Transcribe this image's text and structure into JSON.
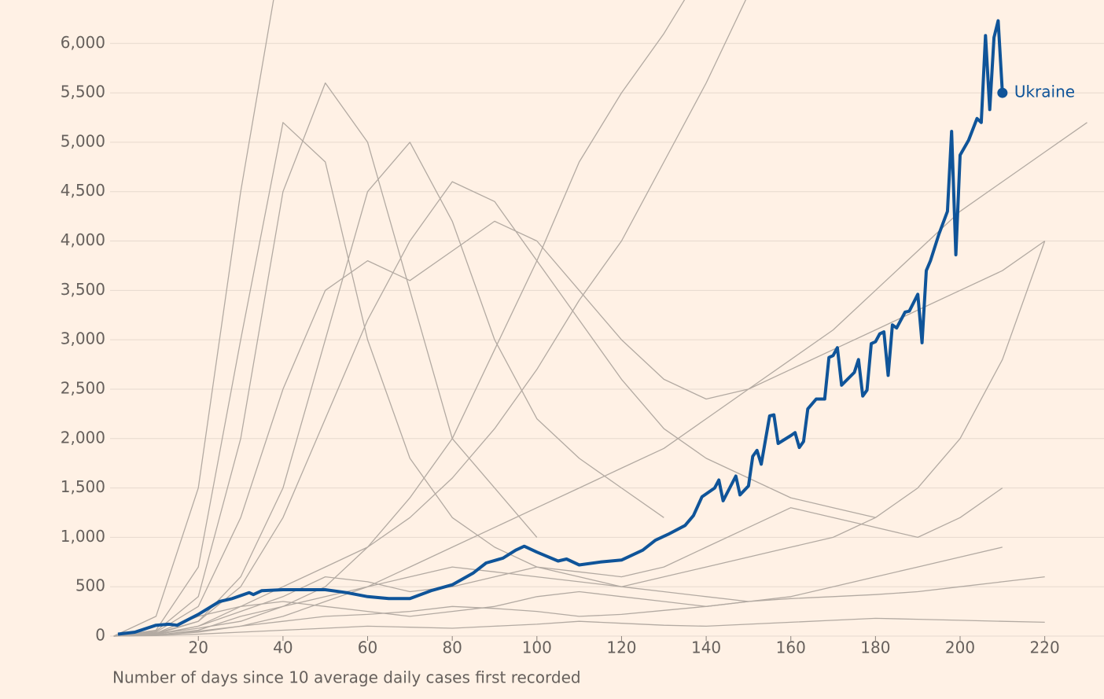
{
  "chart_data": {
    "type": "line",
    "x_label": "Number of days since 10 average daily cases first recorded",
    "xlim": [
      0,
      234
    ],
    "ylim": [
      0,
      6400
    ],
    "xticks": [
      20,
      40,
      60,
      80,
      100,
      120,
      140,
      160,
      180,
      200,
      220
    ],
    "yticks": [
      0,
      500,
      {
        "value": 1000,
        "label": "1,000"
      },
      {
        "value": 1500,
        "label": "1,500"
      },
      {
        "value": 2000,
        "label": "2,000"
      },
      {
        "value": 2500,
        "label": "2,500"
      },
      {
        "value": 3000,
        "label": "3,000"
      },
      {
        "value": 3500,
        "label": "3,500"
      },
      {
        "value": 4000,
        "label": "4,000"
      },
      {
        "value": 4500,
        "label": "4,500"
      },
      {
        "value": 5000,
        "label": "5,000"
      },
      {
        "value": 5500,
        "label": "5,500"
      },
      {
        "value": 6000,
        "label": "6,000"
      }
    ],
    "grid": true,
    "series": [
      {
        "color": "#b3aaa2",
        "x": [
          0,
          10,
          20,
          30,
          40
        ],
        "values": [
          0,
          200,
          1500,
          4500,
          7000
        ]
      },
      {
        "color": "#b3aaa2",
        "x": [
          0,
          10,
          20,
          30,
          40,
          50,
          60,
          70,
          80,
          90,
          100
        ],
        "values": [
          0,
          50,
          400,
          2000,
          4500,
          5600,
          5000,
          3500,
          2000,
          1500,
          1000
        ]
      },
      {
        "color": "#b3aaa2",
        "x": [
          0,
          10,
          20,
          30,
          40,
          50,
          60,
          70,
          80,
          90,
          100,
          110,
          120,
          130
        ],
        "values": [
          0,
          30,
          150,
          600,
          1500,
          3000,
          4500,
          5000,
          4200,
          3000,
          2200,
          1800,
          1500,
          1200
        ]
      },
      {
        "color": "#b3aaa2",
        "x": [
          0,
          10,
          20,
          30,
          40,
          50,
          60,
          70,
          80,
          90,
          100,
          110,
          120,
          130,
          140,
          150
        ],
        "values": [
          0,
          20,
          100,
          300,
          500,
          700,
          900,
          1200,
          1600,
          2100,
          2700,
          3400,
          4000,
          4800,
          5600,
          6500
        ]
      },
      {
        "color": "#b3aaa2",
        "x": [
          0,
          10,
          20,
          30,
          40,
          50,
          60,
          70,
          80,
          90,
          100,
          110,
          120,
          130,
          140,
          150,
          160,
          170,
          180,
          190,
          200,
          210,
          220
        ],
        "values": [
          0,
          10,
          60,
          200,
          300,
          400,
          500,
          600,
          700,
          650,
          600,
          550,
          500,
          600,
          700,
          800,
          900,
          1000,
          1200,
          1500,
          2000,
          2800,
          4000
        ]
      },
      {
        "color": "#b3aaa2",
        "x": [
          0,
          10,
          20,
          30,
          40,
          50,
          60,
          70,
          80,
          90,
          100,
          110,
          120,
          130,
          140,
          150,
          160,
          170,
          180,
          190,
          200,
          210
        ],
        "values": [
          0,
          30,
          200,
          300,
          350,
          300,
          250,
          200,
          250,
          300,
          400,
          450,
          400,
          350,
          300,
          350,
          400,
          500,
          600,
          700,
          800,
          900
        ]
      },
      {
        "color": "#b3aaa2",
        "x": [
          0,
          10,
          20,
          30,
          40,
          50,
          60,
          70,
          80,
          90,
          100,
          110,
          120,
          130,
          140,
          150,
          160,
          170,
          180,
          190,
          200,
          210,
          220
        ],
        "values": [
          0,
          10,
          50,
          100,
          150,
          200,
          220,
          250,
          300,
          280,
          250,
          200,
          220,
          260,
          300,
          350,
          380,
          400,
          420,
          450,
          500,
          550,
          600
        ]
      },
      {
        "color": "#b3aaa2",
        "x": [
          0,
          10,
          20,
          30,
          40,
          50,
          60,
          70,
          80,
          90,
          100,
          110,
          120,
          130,
          140,
          150,
          160,
          170,
          180,
          190,
          200,
          210,
          220
        ],
        "values": [
          0,
          40,
          300,
          1200,
          2500,
          3500,
          3800,
          3600,
          3900,
          4200,
          4000,
          3500,
          3000,
          2600,
          2400,
          2500,
          2700,
          2900,
          3100,
          3300,
          3500,
          3700,
          4000
        ]
      },
      {
        "color": "#b3aaa2",
        "x": [
          0,
          10,
          20,
          30,
          40,
          50,
          60,
          70,
          80,
          90,
          100,
          110,
          120,
          130,
          140
        ],
        "values": [
          0,
          20,
          80,
          150,
          300,
          500,
          900,
          1400,
          2000,
          2900,
          3800,
          4800,
          5500,
          6100,
          6800
        ]
      },
      {
        "color": "#b3aaa2",
        "x": [
          0,
          10,
          20,
          30,
          40,
          50,
          60,
          70,
          80,
          90,
          100,
          110,
          120,
          130,
          140,
          150,
          160,
          170,
          180,
          190,
          200,
          210,
          220
        ],
        "values": [
          0,
          5,
          20,
          40,
          60,
          80,
          100,
          90,
          80,
          100,
          120,
          150,
          130,
          110,
          100,
          120,
          140,
          160,
          180,
          170,
          160,
          150,
          140
        ]
      },
      {
        "color": "#b3aaa2",
        "x": [
          0,
          10,
          20,
          30,
          40,
          50,
          60,
          70,
          80,
          90,
          100,
          110,
          120,
          130,
          140,
          150,
          160,
          170,
          180,
          190,
          200,
          210
        ],
        "values": [
          0,
          15,
          100,
          250,
          400,
          600,
          550,
          450,
          500,
          600,
          700,
          650,
          600,
          700,
          900,
          1100,
          1300,
          1200,
          1100,
          1000,
          1200,
          1500
        ]
      },
      {
        "color": "#b3aaa2",
        "x": [
          0,
          10,
          20,
          30,
          40,
          50,
          60,
          70,
          80,
          90,
          100,
          110,
          120,
          130,
          140,
          150
        ],
        "values": [
          0,
          60,
          700,
          3000,
          5200,
          4800,
          3000,
          1800,
          1200,
          900,
          700,
          600,
          500,
          450,
          400,
          350
        ]
      },
      {
        "color": "#b3aaa2",
        "x": [
          0,
          10,
          20,
          30,
          40,
          50,
          60,
          70,
          80,
          90,
          100,
          110,
          120,
          130,
          140,
          150,
          160,
          170,
          180
        ],
        "values": [
          0,
          20,
          150,
          500,
          1200,
          2200,
          3200,
          4000,
          4600,
          4400,
          3800,
          3200,
          2600,
          2100,
          1800,
          1600,
          1400,
          1300,
          1200
        ]
      },
      {
        "color": "#b3aaa2",
        "x": [
          0,
          10,
          20,
          30,
          40,
          50,
          60,
          70,
          80,
          90,
          100,
          110,
          120,
          130,
          140,
          150,
          160,
          170,
          180,
          190,
          200,
          210,
          220,
          230
        ],
        "values": [
          0,
          10,
          40,
          100,
          200,
          350,
          500,
          700,
          900,
          1100,
          1300,
          1500,
          1700,
          1900,
          2200,
          2500,
          2800,
          3100,
          3500,
          3900,
          4300,
          4600,
          4900,
          5200
        ]
      },
      {
        "name": "Ukraine",
        "color": "#0f5499",
        "x": [
          1,
          5,
          10,
          13,
          15,
          20,
          25,
          28,
          32,
          33,
          35,
          40,
          45,
          50,
          55,
          60,
          65,
          70,
          75,
          80,
          85,
          88,
          92,
          95,
          97,
          100,
          105,
          107,
          110,
          115,
          120,
          125,
          128,
          131,
          135,
          137,
          139,
          142,
          143,
          144,
          147,
          148,
          150,
          151,
          152,
          153,
          155,
          156,
          157,
          160,
          161,
          162,
          163,
          164,
          166,
          168,
          169,
          170,
          171,
          172,
          175,
          176,
          177,
          178,
          179,
          180,
          181,
          182,
          183,
          184,
          185,
          187,
          188,
          190,
          191,
          192,
          193,
          195,
          197,
          198,
          199,
          200,
          202,
          204,
          205,
          206,
          207,
          208,
          209,
          210
        ],
        "values": [
          20,
          40,
          110,
          120,
          110,
          220,
          350,
          380,
          440,
          420,
          460,
          470,
          470,
          470,
          440,
          400,
          380,
          380,
          460,
          520,
          640,
          740,
          790,
          870,
          910,
          850,
          760,
          780,
          720,
          750,
          770,
          870,
          970,
          1030,
          1120,
          1220,
          1410,
          1500,
          1580,
          1370,
          1620,
          1430,
          1520,
          1820,
          1880,
          1740,
          2230,
          2240,
          1950,
          2030,
          2060,
          1910,
          1970,
          2300,
          2400,
          2400,
          2820,
          2840,
          2920,
          2540,
          2670,
          2800,
          2430,
          2490,
          2960,
          2980,
          3060,
          3080,
          2640,
          3150,
          3120,
          3280,
          3290,
          3460,
          2970,
          3700,
          3800,
          4070,
          4300,
          5110,
          3860,
          4870,
          5020,
          5240,
          5200,
          6080,
          5330,
          6060,
          6230,
          5500
        ]
      }
    ]
  }
}
